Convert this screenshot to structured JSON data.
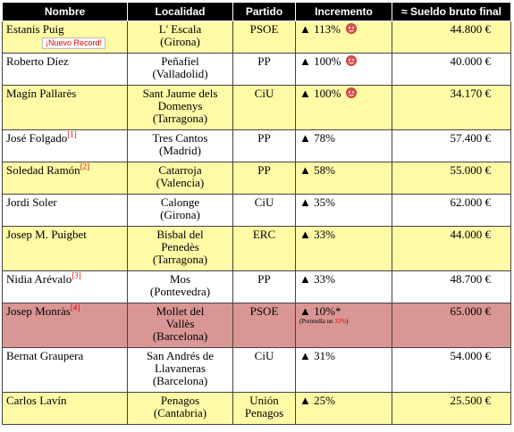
{
  "table": {
    "header": [
      "Nombre",
      "Localidad",
      "Partido",
      "Incremento",
      "≈ Sueldo bruto final"
    ],
    "rows": [
      {
        "name": "Estanis Puig",
        "badge": "¡Nuevo Record!",
        "place": [
          "L' Escala",
          "(Girona)"
        ],
        "party": [
          "PSOE"
        ],
        "inc": "▲ 113%",
        "icon": true,
        "salary": "44.800 €",
        "color": "#fffaa6"
      },
      {
        "name": "Roberto Díez",
        "place": [
          "Peñafiel",
          "(Valladolid)"
        ],
        "party": [
          "PP"
        ],
        "inc": "▲ 100%",
        "icon": true,
        "salary": "40.000 €",
        "color": "#ffffff"
      },
      {
        "name": "Magín Pallarès",
        "place": [
          "Sant Jaume dels",
          "Domenys",
          "(Tarragona)"
        ],
        "party": [
          "CiU"
        ],
        "inc": "▲ 100%",
        "icon": true,
        "salary": "34.170 €",
        "color": "#fffaa6"
      },
      {
        "name": "José Folgado",
        "ref": "[1]",
        "place": [
          "Tres Cantos",
          "(Madrid)"
        ],
        "party": [
          "PP"
        ],
        "inc": "▲ 78%",
        "salary": "57.400 €",
        "color": "#ffffff"
      },
      {
        "name": "Soledad Ramón",
        "ref": "[2]",
        "place": [
          "Catarroja",
          "(Valencia)"
        ],
        "party": [
          "PP"
        ],
        "inc": "▲ 58%",
        "salary": "55.000 €",
        "color": "#fffaa6"
      },
      {
        "name": "Jordi Soler",
        "place": [
          "Calonge",
          "(Girona)"
        ],
        "party": [
          "CiU"
        ],
        "inc": "▲ 35%",
        "salary": "62.000 €",
        "color": "#ffffff"
      },
      {
        "name": "Josep M. Puigbet",
        "place": [
          "Bisbal del",
          "Penedès",
          "(Tarragona)"
        ],
        "party": [
          "ERC"
        ],
        "inc": "▲ 33%",
        "salary": "44.000 €",
        "color": "#fffaa6"
      },
      {
        "name": "Nidia Arévalo",
        "ref": "[3]",
        "place": [
          "Mos",
          "(Pontevedra)"
        ],
        "party": [
          "PP"
        ],
        "inc": "▲ 33%",
        "salary": "48.700 €",
        "color": "#ffffff"
      },
      {
        "name": "Josep Monràs",
        "ref": "[4]",
        "place": [
          "Mollet del",
          "Vallès",
          "(Barcelona)"
        ],
        "party": [
          "PSOE"
        ],
        "inc": "▲ 10%*",
        "note": [
          "(Pretendía un ",
          "32%",
          ")"
        ],
        "salary": "65.000 €",
        "color": "#d99694"
      },
      {
        "name": "Bernat Graupera",
        "place": [
          "San Andrés de",
          "Llavaneras",
          "(Barcelona)"
        ],
        "party": [
          "CiU"
        ],
        "inc": "▲ 31%",
        "salary": "54.000 €",
        "color": "#ffffff"
      },
      {
        "name": "Carlos Lavín",
        "place": [
          "Penagos",
          "(Cantabria)"
        ],
        "party": [
          "Unión",
          "Penagos"
        ],
        "inc": "▲ 25%",
        "salary": "25.500 €",
        "color": "#fffaa6"
      }
    ]
  }
}
